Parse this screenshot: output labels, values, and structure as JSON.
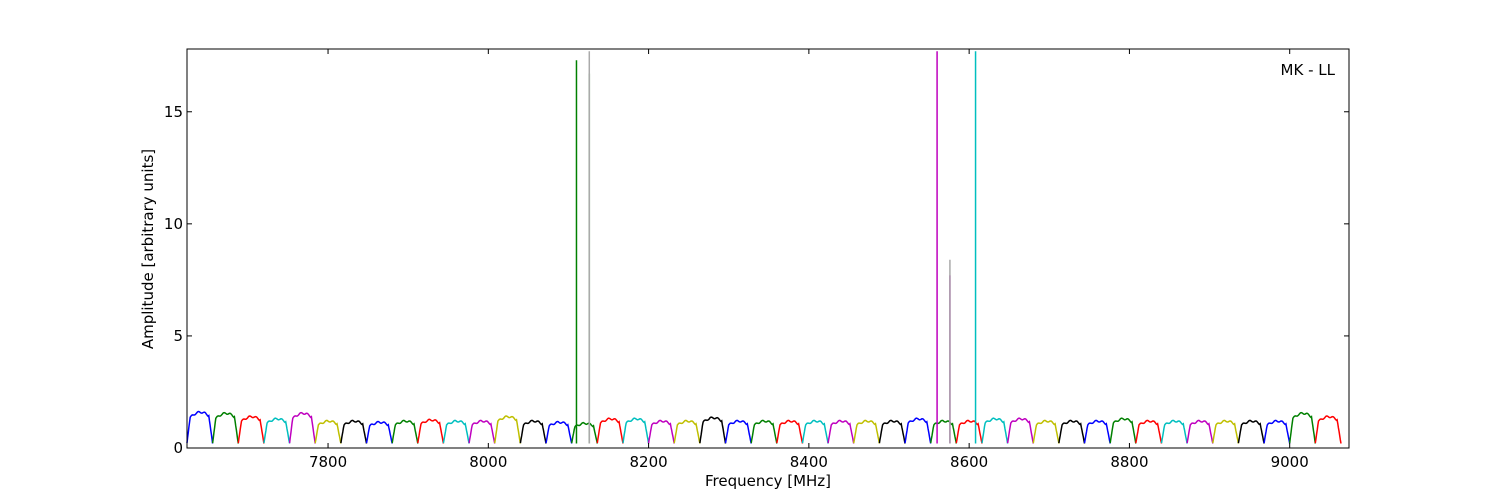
{
  "chart_data": {
    "type": "line",
    "title": "",
    "xlabel": "Frequency [MHz]",
    "ylabel": "Amplitude [arbitrary units]",
    "annotation": "MK - LL",
    "annotation_position": "top-right",
    "xlim": [
      7624,
      9074
    ],
    "ylim": [
      0,
      17.8
    ],
    "xticks": [
      7800,
      8000,
      8200,
      8400,
      8600,
      8800,
      9000
    ],
    "yticks": [
      0,
      5,
      10,
      15
    ],
    "grid": false,
    "legend": "none",
    "channel_width_mhz": 32,
    "channel_starts_mhz": [
      7624,
      7656,
      7688,
      7720,
      7752,
      7784,
      7816,
      7848,
      7880,
      7912,
      7944,
      7976,
      8008,
      8040,
      8072,
      8104,
      8136,
      8168,
      8200,
      8232,
      8264,
      8296,
      8328,
      8360,
      8392,
      8424,
      8456,
      8488,
      8520,
      8552,
      8584,
      8616,
      8648,
      8680,
      8712,
      8744,
      8776,
      8808,
      8840,
      8872,
      8904,
      8936,
      8968,
      9000,
      9032
    ],
    "channel_peak_amplitudes": [
      1.6,
      1.55,
      1.4,
      1.3,
      1.55,
      1.2,
      1.2,
      1.15,
      1.2,
      1.25,
      1.2,
      1.2,
      1.4,
      1.2,
      1.15,
      1.1,
      1.3,
      1.3,
      1.2,
      1.2,
      1.35,
      1.2,
      1.2,
      1.2,
      1.2,
      1.2,
      1.2,
      1.2,
      1.3,
      1.2,
      1.2,
      1.3,
      1.3,
      1.2,
      1.2,
      1.2,
      1.3,
      1.2,
      1.2,
      1.2,
      1.2,
      1.2,
      1.2,
      1.55,
      1.4
    ],
    "color_cycle": [
      "#0000ff",
      "#008000",
      "#ff0000",
      "#00bfbf",
      "#bf00bf",
      "#bfbf00",
      "#000000"
    ],
    "spikes": [
      {
        "x": 8110,
        "y": 17.3,
        "color": "#008000"
      },
      {
        "x": 8126,
        "y": 16.7,
        "color": "#008000"
      },
      {
        "x": 8126,
        "y": 17.7,
        "color": "#aaaaaa"
      },
      {
        "x": 8560,
        "y": 17.7,
        "color": "#bf00bf"
      },
      {
        "x": 8576,
        "y": 7.7,
        "color": "#bf00bf"
      },
      {
        "x": 8576,
        "y": 8.4,
        "color": "#aaaaaa"
      },
      {
        "x": 8608,
        "y": 17.7,
        "color": "#00bfbf"
      }
    ]
  }
}
